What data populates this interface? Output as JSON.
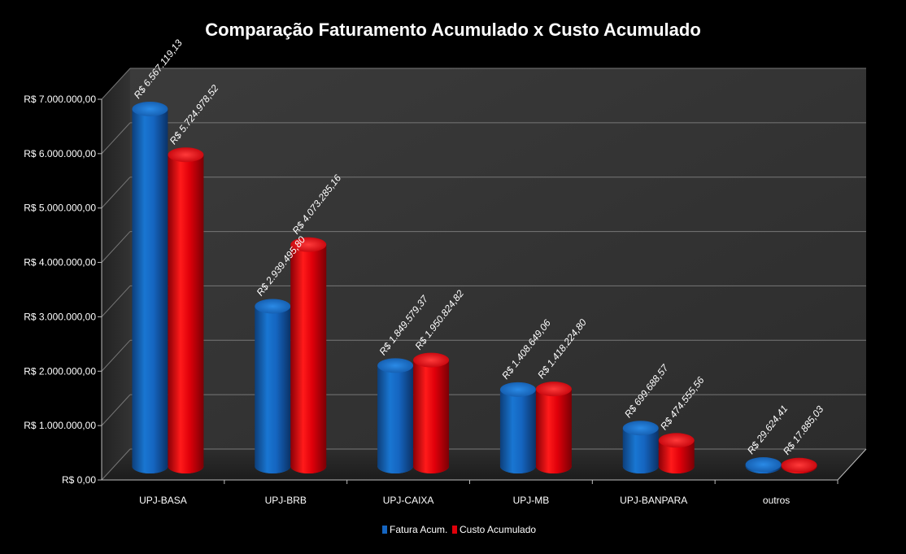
{
  "chart_data": {
    "type": "bar",
    "title": "Comparação Faturamento Acumulado x Custo Acumulado",
    "categories": [
      "UPJ-BASA",
      "UPJ-BRB",
      "UPJ-CAIXA",
      "UPJ-MB",
      "UPJ-BANPARA",
      "outros"
    ],
    "series": [
      {
        "name": "Fatura Acum.",
        "color": "#1565c0",
        "values": [
          6567119.13,
          2939495.8,
          1849579.37,
          1408649.06,
          699688.57,
          29624.41
        ],
        "labels": [
          "R$ 6.567.119,13",
          "R$ 2.939.495,80",
          "R$ 1.849.579,37",
          "R$ 1.408.649,06",
          "R$ 699.688,57",
          "R$ 29.624,41"
        ]
      },
      {
        "name": "Custo Acumulado",
        "color": "#e0000a",
        "values": [
          5724978.52,
          4073285.16,
          1950824.82,
          1418224.8,
          474555.56,
          17885.03
        ],
        "labels": [
          "R$ 5.724.978,52",
          "R$ 4.073.285,16",
          "R$ 1.950.824,82",
          "R$ 1.418.224,80",
          "R$ 474.555,56",
          "R$ 17.885,03"
        ]
      }
    ],
    "ylim": [
      0,
      7000000
    ],
    "yticks": [
      0,
      1000000,
      2000000,
      3000000,
      4000000,
      5000000,
      6000000,
      7000000
    ],
    "ytick_labels": [
      "R$ 0,00",
      "R$ 1.000.000,00",
      "R$ 2.000.000,00",
      "R$ 3.000.000,00",
      "R$ 4.000.000,00",
      "R$ 5.000.000,00",
      "R$ 6.000.000,00",
      "R$ 7.000.000,00"
    ],
    "xlabel": "",
    "ylabel": "",
    "grid": true,
    "legend_position": "bottom",
    "style": "3d-cylinder",
    "background": "#000000",
    "plot_wall_color": "#3a3a3a"
  }
}
